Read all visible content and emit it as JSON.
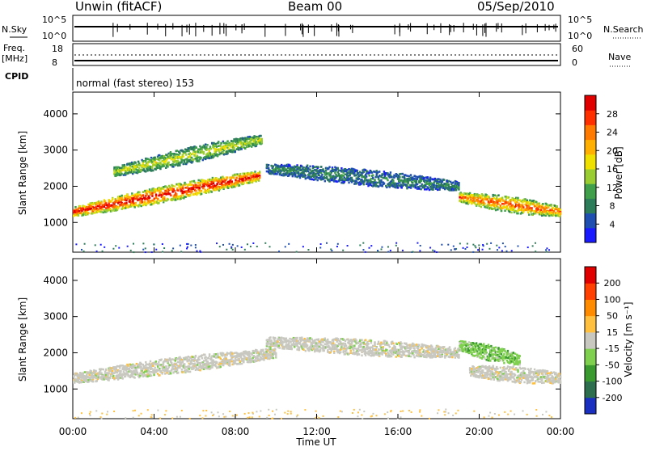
{
  "header": {
    "radar": "Unwin (fitACF)",
    "beam": "Beam 00",
    "date": "05/Sep/2010"
  },
  "status_panels": {
    "nsky_label": "N.Sky",
    "nsky_ticks": [
      "10^5",
      "10^0"
    ],
    "nsearch_label": "N.Search",
    "nsearch_ticks": [
      "10^5",
      "10^0"
    ],
    "freq_label": "Freq.",
    "freq_unit": "[MHz]",
    "freq_ticks": [
      "18",
      "8"
    ],
    "nave_label": "Nave",
    "nave_ticks": [
      "60",
      "0"
    ],
    "cpid_label": "CPID",
    "cpid_text": "normal (fast stereo) 153"
  },
  "chart_data": [
    {
      "type": "heatmap",
      "name": "power",
      "ylabel": "Slant Range [km]",
      "ylim": [
        180,
        4600
      ],
      "y_ticks": [
        1000,
        2000,
        3000,
        4000
      ],
      "xlim": [
        0,
        24
      ],
      "colorbar": {
        "label": "Power [dB]",
        "range": [
          0,
          32
        ],
        "ticks": [
          "4",
          "8",
          "12",
          "16",
          "20",
          "24",
          "28"
        ],
        "colors": [
          "#1a1aff",
          "#1f4fb0",
          "#2e7d5a",
          "#3f9f4a",
          "#9acd32",
          "#f0e000",
          "#ffb000",
          "#ff7a00",
          "#ff3000",
          "#e00000"
        ]
      },
      "features": [
        {
          "label": "band",
          "t_start": 0.0,
          "t_end": 9.2,
          "range_start": 1300,
          "range_end": 2300,
          "level": 24
        },
        {
          "label": "upper",
          "t_start": 2.0,
          "t_end": 9.3,
          "range_start": 2400,
          "range_end": 3300,
          "level": 12
        },
        {
          "label": "arc",
          "t_start": 9.5,
          "t_end": 19.0,
          "range_start": 2500,
          "range_end": 2000,
          "level": 6
        },
        {
          "label": "evening",
          "t_start": 19.0,
          "t_end": 24.0,
          "range_start": 1700,
          "range_end": 1300,
          "level": 20
        }
      ]
    },
    {
      "type": "heatmap",
      "name": "velocity",
      "ylabel": "Slant Range [km]",
      "ylim": [
        180,
        4600
      ],
      "y_ticks": [
        1000,
        2000,
        3000,
        4000
      ],
      "xlim": [
        0,
        24
      ],
      "xlabel": "Time UT",
      "x_ticks": [
        "00:00",
        "04:00",
        "08:00",
        "12:00",
        "16:00",
        "20:00",
        "00:00"
      ],
      "colorbar": {
        "label": "Velocity [m s⁻¹]",
        "ticks": [
          "200",
          "100",
          "50",
          "15",
          "-15",
          "-50",
          "-100",
          "-200"
        ],
        "colors": [
          "#1a2fc0",
          "#2d6e4f",
          "#3a9a2f",
          "#7fd04f",
          "#c8c8c0",
          "#ffc040",
          "#ff8c00",
          "#ff4000",
          "#e00000"
        ]
      },
      "features": [
        {
          "label": "ground",
          "t_start": 0.0,
          "t_end": 10.0,
          "range_start": 1300,
          "range_end": 2000,
          "color": "gray"
        },
        {
          "label": "arc",
          "t_start": 9.5,
          "t_end": 19.0,
          "range_start": 2300,
          "range_end": 2000,
          "color": "gray"
        },
        {
          "label": "evening-green",
          "t_start": 19.0,
          "t_end": 22.0,
          "range_start": 2200,
          "range_end": 1800,
          "color": "green"
        },
        {
          "label": "evening-gray",
          "t_start": 19.5,
          "t_end": 24.0,
          "range_start": 1500,
          "range_end": 1300,
          "color": "gray"
        }
      ]
    }
  ]
}
